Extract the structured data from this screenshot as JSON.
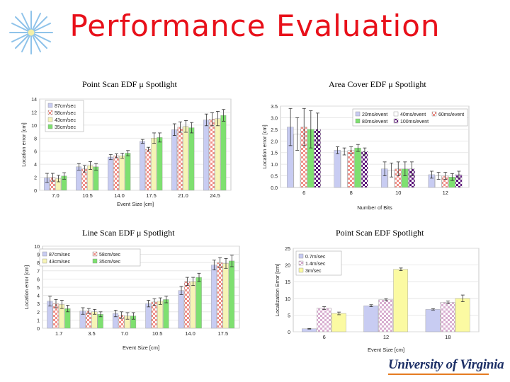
{
  "slide": {
    "title": "Performance Evaluation",
    "logo_text": "University of Virginia"
  },
  "colors": {
    "title": "#e8101a",
    "accent": "#e57b21"
  },
  "chart_data": [
    {
      "id": "c1",
      "caption": "Point Scan EDF μ Spotlight",
      "type": "bar",
      "xlabel": "Event Size [cm]",
      "ylabel": "Location error [cm]",
      "categories": [
        "7.0",
        "10.5",
        "14.0",
        "17.5",
        "21.0",
        "24.5"
      ],
      "yticks": [
        "0",
        "2",
        "4",
        "6",
        "8",
        "10",
        "12",
        "14"
      ],
      "ylim": [
        0,
        14
      ],
      "legend_position": "top-left",
      "series": [
        {
          "name": "87cm/sec",
          "values": [
            1.9,
            3.6,
            5.1,
            7.5,
            9.3,
            10.8
          ],
          "errors": [
            0.7,
            0.5,
            0.4,
            0.3,
            0.9,
            0.9
          ],
          "color": "#c8ccf2",
          "pattern": "solid"
        },
        {
          "name": "58cm/sec",
          "values": [
            2.0,
            3.3,
            5.3,
            6.3,
            9.7,
            10.9
          ],
          "errors": [
            0.6,
            0.5,
            0.3,
            0.3,
            0.8,
            1.0
          ],
          "color": "#ef8f88",
          "pattern": "check"
        },
        {
          "name": "43cm/sec",
          "values": [
            1.8,
            3.8,
            5.3,
            8.0,
            9.8,
            11.0
          ],
          "errors": [
            0.5,
            0.6,
            0.4,
            0.8,
            0.9,
            1.1
          ],
          "color": "#f6f4b6",
          "pattern": "solid"
        },
        {
          "name": "35cm/sec",
          "values": [
            2.2,
            3.6,
            5.7,
            8.1,
            9.6,
            11.5
          ],
          "errors": [
            0.5,
            0.5,
            0.4,
            0.7,
            0.8,
            0.9
          ],
          "color": "#7ee070",
          "pattern": "solid"
        }
      ]
    },
    {
      "id": "c2",
      "caption": "Area Cover EDF μ Spotlight",
      "type": "bar",
      "xlabel": "Number of Bits",
      "ylabel": "Location error [cm]",
      "categories": [
        "6",
        "8",
        "10",
        "12"
      ],
      "yticks": [
        "0.0",
        "0.5",
        "1.0",
        "1.5",
        "2.0",
        "2.5",
        "3.0",
        "3.5"
      ],
      "ylim": [
        0,
        3.5
      ],
      "legend_position": "top-right",
      "series": [
        {
          "name": "20ms/event",
          "values": [
            2.6,
            1.6,
            0.8,
            0.55
          ],
          "errors": [
            0.8,
            0.15,
            0.3,
            0.15
          ],
          "color": "#c8ccf2",
          "pattern": "solid"
        },
        {
          "name": "40ms/event",
          "values": [
            2.3,
            1.55,
            0.75,
            0.5
          ],
          "errors": [
            0.7,
            0.15,
            0.3,
            0.15
          ],
          "color": "#ffffff",
          "pattern": "solid"
        },
        {
          "name": "60ms/event",
          "values": [
            2.6,
            1.6,
            0.8,
            0.5
          ],
          "errors": [
            0.8,
            0.15,
            0.3,
            0.15
          ],
          "color": "#ef8f88",
          "pattern": "check"
        },
        {
          "name": "80ms/event",
          "values": [
            2.5,
            1.7,
            0.8,
            0.45
          ],
          "errors": [
            0.8,
            0.15,
            0.3,
            0.15
          ],
          "color": "#7ee070",
          "pattern": "solid"
        },
        {
          "name": "100ms/event",
          "values": [
            2.5,
            1.55,
            0.8,
            0.55
          ],
          "errors": [
            0.7,
            0.15,
            0.3,
            0.15
          ],
          "color": "#5b137a",
          "pattern": "check"
        }
      ]
    },
    {
      "id": "c3",
      "caption": "Line Scan EDF μ Spotlight",
      "type": "bar",
      "xlabel": "Event Size [cm]",
      "ylabel": "Location error [cm]",
      "categories": [
        "1.7",
        "3.5",
        "7.0",
        "10.5",
        "14.0",
        "17.5"
      ],
      "yticks": [
        "0",
        "1",
        "2",
        "3",
        "4",
        "5",
        "6",
        "7",
        "8",
        "9",
        "10"
      ],
      "ylim": [
        0,
        10
      ],
      "legend_position": "top-left",
      "series": [
        {
          "name": "87cm/sec",
          "values": [
            3.3,
            2.1,
            1.8,
            3.0,
            4.6,
            7.7
          ],
          "errors": [
            0.6,
            0.4,
            0.4,
            0.4,
            0.5,
            0.6
          ],
          "color": "#c8ccf2",
          "pattern": "solid"
        },
        {
          "name": "58cm/sec",
          "values": [
            3.0,
            2.1,
            1.6,
            3.2,
            5.7,
            8.0
          ],
          "errors": [
            0.5,
            0.3,
            0.4,
            0.4,
            0.5,
            0.6
          ],
          "color": "#ef8f88",
          "pattern": "check"
        },
        {
          "name": "43cm/sec",
          "values": [
            2.9,
            2.0,
            1.5,
            3.3,
            5.7,
            7.9
          ],
          "errors": [
            0.5,
            0.3,
            0.4,
            0.4,
            0.5,
            0.6
          ],
          "color": "#f6f4b6",
          "pattern": "solid"
        },
        {
          "name": "35cm/sec",
          "values": [
            2.4,
            1.7,
            1.5,
            3.5,
            6.2,
            8.2
          ],
          "errors": [
            0.4,
            0.3,
            0.4,
            0.4,
            0.5,
            0.7
          ],
          "color": "#7ee070",
          "pattern": "solid"
        }
      ]
    },
    {
      "id": "c4",
      "caption": "Point Scan EDF Spotlight",
      "type": "bar",
      "xlabel": "Event Size [cm]",
      "ylabel": "Localization Error [cm]",
      "categories": [
        "6",
        "12",
        "18"
      ],
      "yticks": [
        "0",
        "5",
        "10",
        "15",
        "20",
        "25"
      ],
      "ylim": [
        0,
        25
      ],
      "legend_position": "top-left",
      "series": [
        {
          "name": "0.7m/sec",
          "values": [
            0.9,
            7.8,
            6.7
          ],
          "errors": [
            0.1,
            0.3,
            0.2
          ],
          "color": "#c8ccf2",
          "pattern": "solid"
        },
        {
          "name": "1.4m/sec",
          "values": [
            7.1,
            9.6,
            8.8
          ],
          "errors": [
            0.4,
            0.3,
            0.4
          ],
          "color": "#d8aed0",
          "pattern": "check"
        },
        {
          "name": "3m/sec",
          "values": [
            5.5,
            18.7,
            10.0
          ],
          "errors": [
            0.4,
            0.4,
            1.0
          ],
          "color": "#fbfaa2",
          "pattern": "solid"
        }
      ]
    }
  ]
}
